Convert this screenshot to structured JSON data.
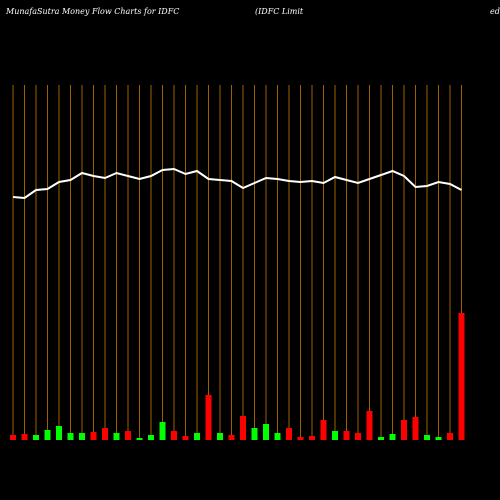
{
  "chart_data": {
    "type": "money-flow",
    "title": "MunafaSutra  Money Flow  Charts for IDFC",
    "subtitle": "(IDFC Limit",
    "subtitle_tail": "ed",
    "categories": [
      null,
      null,
      null,
      null,
      null,
      null,
      null,
      null,
      null,
      null,
      null,
      null,
      null,
      null,
      null,
      null,
      null,
      null,
      null,
      null,
      null,
      null,
      null,
      null,
      null,
      null,
      null,
      null,
      null,
      null,
      null,
      null,
      null,
      null,
      null,
      null,
      null,
      null,
      null,
      null
    ],
    "ylim": [
      0,
      360
    ],
    "line": {
      "color": "#ffffff",
      "values": [
        243,
        242,
        250,
        251,
        258,
        260,
        267,
        264,
        262,
        267,
        264,
        261,
        264,
        270,
        271,
        266,
        269,
        261,
        260,
        259,
        252,
        257,
        262,
        261,
        259,
        258,
        259,
        257,
        263,
        260,
        257,
        261,
        265,
        269,
        264,
        253,
        254,
        258,
        256,
        250
      ]
    },
    "bars": {
      "values": [
        5,
        6,
        5,
        10,
        14,
        7,
        7,
        8,
        12,
        7,
        9,
        2,
        5,
        18,
        9,
        4,
        7,
        45,
        7,
        5,
        24,
        12,
        16,
        7,
        12,
        3,
        4,
        20,
        9,
        9,
        7,
        29,
        3,
        6,
        20,
        23,
        5,
        3,
        7,
        127
      ],
      "colors": [
        "#ff0000",
        "#ff0000",
        "#00ff00",
        "#00ff00",
        "#00ff00",
        "#00ff00",
        "#00ff00",
        "#ff0000",
        "#ff0000",
        "#00ff00",
        "#ff0000",
        "#00ff00",
        "#00ff00",
        "#00ff00",
        "#ff0000",
        "#ff0000",
        "#00ff00",
        "#ff0000",
        "#00ff00",
        "#ff0000",
        "#ff0000",
        "#00ff00",
        "#00ff00",
        "#00ff00",
        "#ff0000",
        "#ff0000",
        "#ff0000",
        "#ff0000",
        "#00ff00",
        "#ff0000",
        "#ff0000",
        "#ff0000",
        "#00ff00",
        "#00ff00",
        "#ff0000",
        "#ff0000",
        "#00ff00",
        "#00ff00",
        "#ff0000",
        "#ff0000"
      ]
    },
    "gridline_color": "#c87800"
  }
}
